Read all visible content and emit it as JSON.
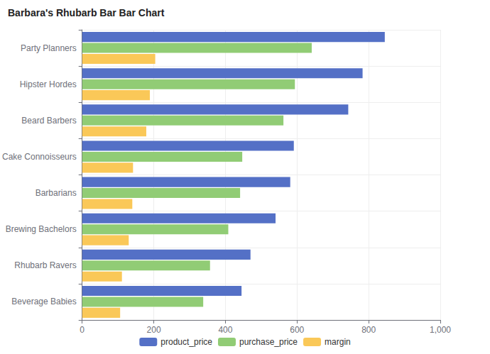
{
  "chart_data": {
    "type": "bar",
    "title": "Barbara's Rhubarb Bar Bar Chart",
    "orientation": "horizontal",
    "categories": [
      "Party Planners",
      "Hipster Hordes",
      "Beard Barbers",
      "Cake Connoisseurs",
      "Barbarians",
      "Brewing Bachelors",
      "Rhubarb Ravers",
      "Beverage Babies"
    ],
    "series": [
      {
        "name": "product_price",
        "color": "#5470c6",
        "values": [
          845,
          783,
          743,
          591,
          581,
          540,
          470,
          445
        ]
      },
      {
        "name": "purchase_price",
        "color": "#91cc75",
        "values": [
          641,
          594,
          562,
          447,
          441,
          408,
          357,
          338
        ]
      },
      {
        "name": "margin",
        "color": "#fac858",
        "values": [
          204,
          189,
          179,
          142,
          140,
          130,
          111,
          106
        ]
      }
    ],
    "xlim": [
      0,
      1000
    ],
    "xticks": [
      0,
      200,
      400,
      600,
      800,
      1000
    ],
    "grid": true,
    "legend": "bottom"
  }
}
